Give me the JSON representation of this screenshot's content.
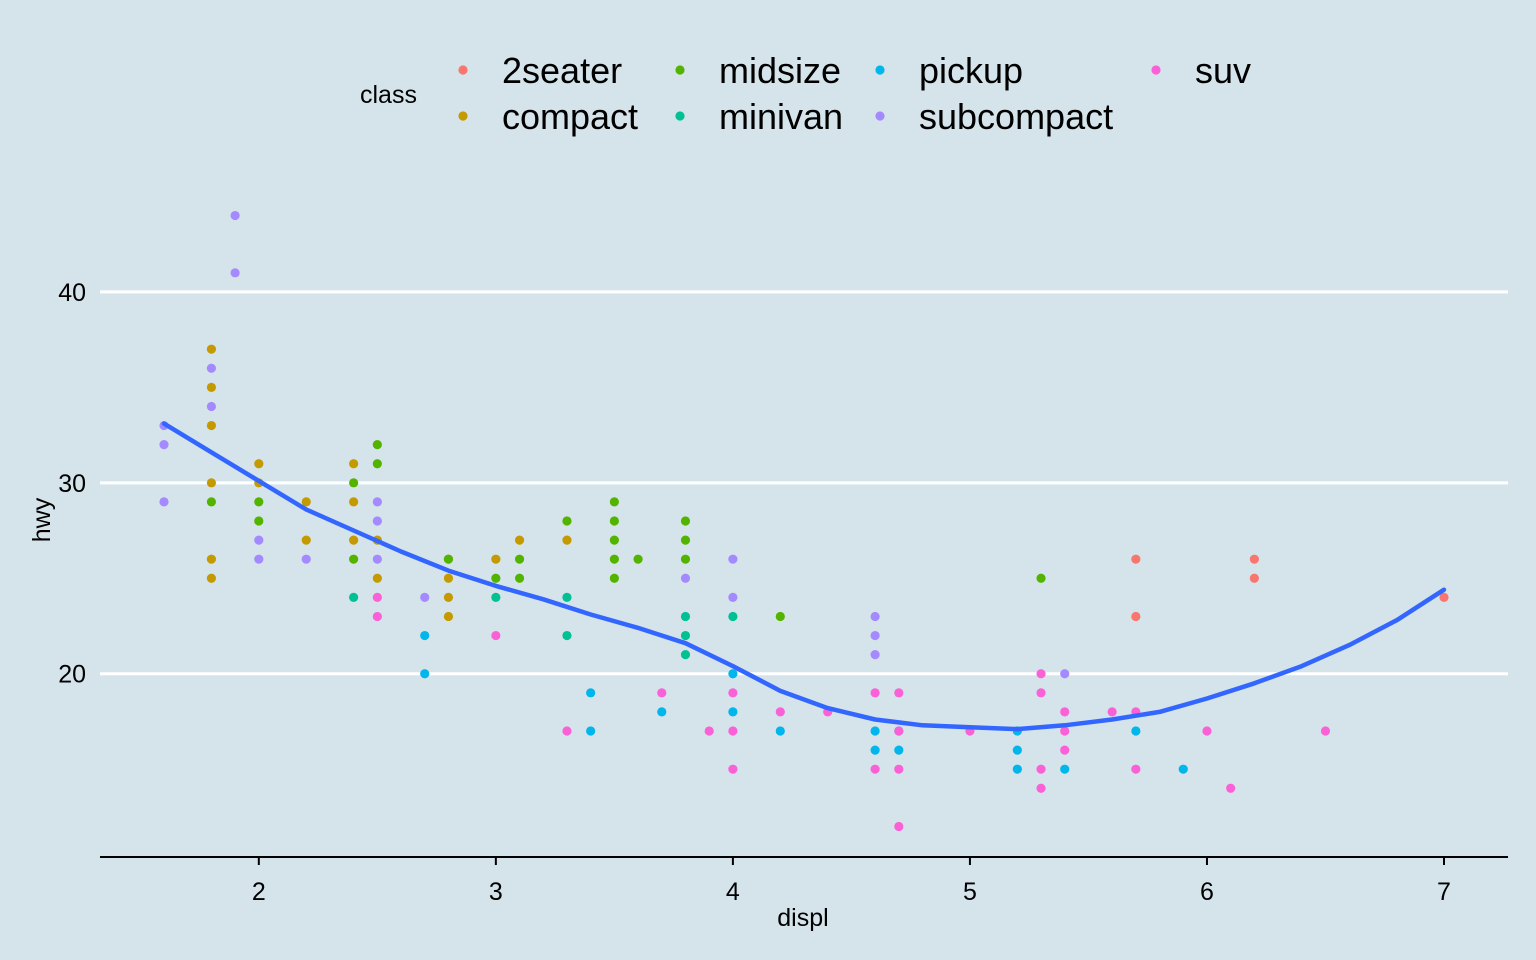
{
  "chart_data": {
    "type": "scatter",
    "xlabel": "displ",
    "ylabel": "hwy",
    "xlim": [
      1.33,
      7.27
    ],
    "ylim": [
      10.4,
      45.6
    ],
    "x_ticks": [
      2,
      3,
      4,
      5,
      6,
      7
    ],
    "y_ticks": [
      20,
      30,
      40
    ],
    "x_tick_labels": [
      "2",
      "3",
      "4",
      "5",
      "6",
      "7"
    ],
    "y_tick_labels": [
      "20",
      "30",
      "40"
    ],
    "grid": "horizontal major only",
    "legend": {
      "title": "class",
      "placement": "top",
      "entries": [
        {
          "label": "2seater",
          "color": "#F8766D"
        },
        {
          "label": "compact",
          "color": "#C49A00"
        },
        {
          "label": "midsize",
          "color": "#53B400"
        },
        {
          "label": "minivan",
          "color": "#00C094"
        },
        {
          "label": "pickup",
          "color": "#00B6EB"
        },
        {
          "label": "subcompact",
          "color": "#A58AFF"
        },
        {
          "label": "suv",
          "color": "#FB61D7"
        }
      ]
    },
    "colors": {
      "background": "#d5e4eb",
      "grid": "#ffffff",
      "axis_line": "#000000",
      "smooth_line": "#3366FF"
    },
    "series": [
      {
        "name": "2seater",
        "color": "#F8766D",
        "points": [
          [
            5.7,
            26
          ],
          [
            5.7,
            23
          ],
          [
            6.2,
            26
          ],
          [
            6.2,
            25
          ],
          [
            7.0,
            24
          ]
        ]
      },
      {
        "name": "compact",
        "color": "#C49A00",
        "points": [
          [
            1.8,
            37
          ],
          [
            1.8,
            35
          ],
          [
            1.8,
            33
          ],
          [
            1.8,
            30
          ],
          [
            1.8,
            26
          ],
          [
            1.8,
            25
          ],
          [
            2.0,
            31
          ],
          [
            2.0,
            30
          ],
          [
            2.2,
            29
          ],
          [
            2.2,
            27
          ],
          [
            2.4,
            31
          ],
          [
            2.4,
            29
          ],
          [
            2.4,
            27
          ],
          [
            2.5,
            27
          ],
          [
            2.5,
            25
          ],
          [
            2.8,
            26
          ],
          [
            2.8,
            25
          ],
          [
            2.8,
            24
          ],
          [
            2.8,
            23
          ],
          [
            3.0,
            26
          ],
          [
            3.1,
            27
          ],
          [
            3.3,
            27
          ]
        ]
      },
      {
        "name": "midsize",
        "color": "#53B400",
        "points": [
          [
            1.8,
            29
          ],
          [
            2.0,
            29
          ],
          [
            2.0,
            28
          ],
          [
            2.4,
            30
          ],
          [
            2.4,
            26
          ],
          [
            2.5,
            32
          ],
          [
            2.5,
            31
          ],
          [
            2.8,
            26
          ],
          [
            3.0,
            25
          ],
          [
            3.1,
            26
          ],
          [
            3.1,
            25
          ],
          [
            3.3,
            28
          ],
          [
            3.5,
            29
          ],
          [
            3.5,
            28
          ],
          [
            3.5,
            27
          ],
          [
            3.5,
            26
          ],
          [
            3.5,
            25
          ],
          [
            3.6,
            26
          ],
          [
            3.8,
            28
          ],
          [
            3.8,
            27
          ],
          [
            3.8,
            26
          ],
          [
            4.2,
            23
          ],
          [
            5.3,
            25
          ]
        ]
      },
      {
        "name": "minivan",
        "color": "#00C094",
        "points": [
          [
            2.4,
            24
          ],
          [
            3.0,
            24
          ],
          [
            3.3,
            24
          ],
          [
            3.3,
            22
          ],
          [
            3.8,
            23
          ],
          [
            3.8,
            22
          ],
          [
            3.8,
            21
          ],
          [
            4.0,
            23
          ]
        ]
      },
      {
        "name": "pickup",
        "color": "#00B6EB",
        "points": [
          [
            2.7,
            22
          ],
          [
            2.7,
            20
          ],
          [
            3.4,
            19
          ],
          [
            3.4,
            17
          ],
          [
            3.7,
            18
          ],
          [
            4.0,
            20
          ],
          [
            4.0,
            18
          ],
          [
            4.2,
            17
          ],
          [
            4.6,
            17
          ],
          [
            4.6,
            16
          ],
          [
            4.7,
            17
          ],
          [
            4.7,
            16
          ],
          [
            5.2,
            17
          ],
          [
            5.2,
            16
          ],
          [
            5.2,
            15
          ],
          [
            5.4,
            15
          ],
          [
            5.7,
            17
          ],
          [
            5.9,
            15
          ]
        ]
      },
      {
        "name": "subcompact",
        "color": "#A58AFF",
        "points": [
          [
            1.6,
            33
          ],
          [
            1.6,
            32
          ],
          [
            1.6,
            29
          ],
          [
            1.8,
            36
          ],
          [
            1.8,
            34
          ],
          [
            1.9,
            44
          ],
          [
            1.9,
            41
          ],
          [
            2.0,
            27
          ],
          [
            2.0,
            26
          ],
          [
            2.2,
            26
          ],
          [
            2.5,
            29
          ],
          [
            2.5,
            28
          ],
          [
            2.5,
            26
          ],
          [
            2.7,
            24
          ],
          [
            3.8,
            25
          ],
          [
            4.0,
            26
          ],
          [
            4.0,
            24
          ],
          [
            4.6,
            23
          ],
          [
            4.6,
            22
          ],
          [
            4.6,
            21
          ],
          [
            5.4,
            20
          ]
        ]
      },
      {
        "name": "suv",
        "color": "#FB61D7",
        "points": [
          [
            2.5,
            24
          ],
          [
            2.5,
            23
          ],
          [
            3.0,
            22
          ],
          [
            3.3,
            17
          ],
          [
            3.7,
            19
          ],
          [
            3.9,
            17
          ],
          [
            4.0,
            19
          ],
          [
            4.0,
            17
          ],
          [
            4.0,
            15
          ],
          [
            4.2,
            18
          ],
          [
            4.4,
            18
          ],
          [
            4.6,
            19
          ],
          [
            4.6,
            15
          ],
          [
            4.7,
            19
          ],
          [
            4.7,
            17
          ],
          [
            4.7,
            15
          ],
          [
            4.7,
            12
          ],
          [
            5.0,
            17
          ],
          [
            5.3,
            20
          ],
          [
            5.3,
            19
          ],
          [
            5.3,
            15
          ],
          [
            5.3,
            14
          ],
          [
            5.4,
            18
          ],
          [
            5.4,
            17
          ],
          [
            5.4,
            16
          ],
          [
            5.6,
            18
          ],
          [
            5.7,
            18
          ],
          [
            5.7,
            15
          ],
          [
            6.0,
            17
          ],
          [
            6.1,
            14
          ],
          [
            6.5,
            17
          ]
        ]
      }
    ],
    "smooth": {
      "method": "loess",
      "color": "#3366FF",
      "points": [
        [
          1.6,
          33.1
        ],
        [
          1.8,
          31.6
        ],
        [
          2.0,
          30.1
        ],
        [
          2.2,
          28.6
        ],
        [
          2.4,
          27.5
        ],
        [
          2.6,
          26.4
        ],
        [
          2.8,
          25.4
        ],
        [
          3.0,
          24.6
        ],
        [
          3.2,
          23.9
        ],
        [
          3.4,
          23.1
        ],
        [
          3.6,
          22.4
        ],
        [
          3.8,
          21.6
        ],
        [
          4.0,
          20.4
        ],
        [
          4.2,
          19.1
        ],
        [
          4.4,
          18.2
        ],
        [
          4.6,
          17.6
        ],
        [
          4.8,
          17.3
        ],
        [
          5.0,
          17.2
        ],
        [
          5.2,
          17.1
        ],
        [
          5.4,
          17.3
        ],
        [
          5.6,
          17.6
        ],
        [
          5.8,
          18.0
        ],
        [
          6.0,
          18.7
        ],
        [
          6.2,
          19.5
        ],
        [
          6.4,
          20.4
        ],
        [
          6.6,
          21.5
        ],
        [
          6.8,
          22.8
        ],
        [
          7.0,
          24.4
        ]
      ]
    }
  }
}
